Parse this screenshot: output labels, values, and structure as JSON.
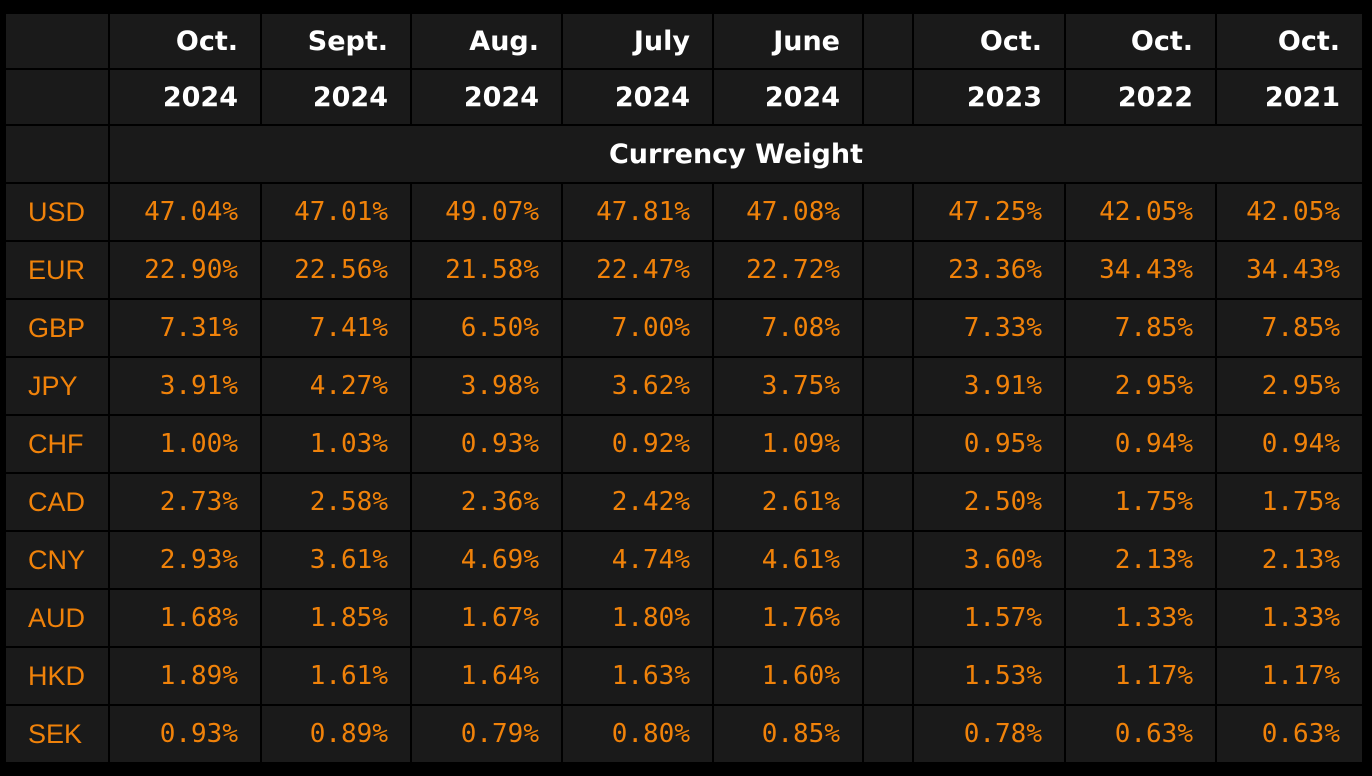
{
  "chart_data": {
    "type": "table",
    "title": "Currency Weight",
    "columns": [
      {
        "month": "Oct.",
        "year": "2024"
      },
      {
        "month": "Sept.",
        "year": "2024"
      },
      {
        "month": "Aug.",
        "year": "2024"
      },
      {
        "month": "July",
        "year": "2024"
      },
      {
        "month": "June",
        "year": "2024"
      },
      {
        "month": "Oct.",
        "year": "2023"
      },
      {
        "month": "Oct.",
        "year": "2022"
      },
      {
        "month": "Oct.",
        "year": "2021"
      }
    ],
    "rows": [
      {
        "currency": "USD",
        "values": [
          "47.04%",
          "47.01%",
          "49.07%",
          "47.81%",
          "47.08%",
          "47.25%",
          "42.05%",
          "42.05%"
        ]
      },
      {
        "currency": "EUR",
        "values": [
          "22.90%",
          "22.56%",
          "21.58%",
          "22.47%",
          "22.72%",
          "23.36%",
          "34.43%",
          "34.43%"
        ]
      },
      {
        "currency": "GBP",
        "values": [
          "7.31%",
          "7.41%",
          "6.50%",
          "7.00%",
          "7.08%",
          "7.33%",
          "7.85%",
          "7.85%"
        ]
      },
      {
        "currency": "JPY",
        "values": [
          "3.91%",
          "4.27%",
          "3.98%",
          "3.62%",
          "3.75%",
          "3.91%",
          "2.95%",
          "2.95%"
        ]
      },
      {
        "currency": "CHF",
        "values": [
          "1.00%",
          "1.03%",
          "0.93%",
          "0.92%",
          "1.09%",
          "0.95%",
          "0.94%",
          "0.94%"
        ]
      },
      {
        "currency": "CAD",
        "values": [
          "2.73%",
          "2.58%",
          "2.36%",
          "2.42%",
          "2.61%",
          "2.50%",
          "1.75%",
          "1.75%"
        ]
      },
      {
        "currency": "CNY",
        "values": [
          "2.93%",
          "3.61%",
          "4.69%",
          "4.74%",
          "4.61%",
          "3.60%",
          "2.13%",
          "2.13%"
        ]
      },
      {
        "currency": "AUD",
        "values": [
          "1.68%",
          "1.85%",
          "1.67%",
          "1.80%",
          "1.76%",
          "1.57%",
          "1.33%",
          "1.33%"
        ]
      },
      {
        "currency": "HKD",
        "values": [
          "1.89%",
          "1.61%",
          "1.64%",
          "1.63%",
          "1.60%",
          "1.53%",
          "1.17%",
          "1.17%"
        ]
      },
      {
        "currency": "SEK",
        "values": [
          "0.93%",
          "0.89%",
          "0.79%",
          "0.80%",
          "0.85%",
          "0.78%",
          "0.63%",
          "0.63%"
        ]
      }
    ]
  },
  "colors": {
    "background": "#000000",
    "cell": "#1a1a1a",
    "header_text": "#ffffff",
    "value_text": "#f0820a"
  }
}
